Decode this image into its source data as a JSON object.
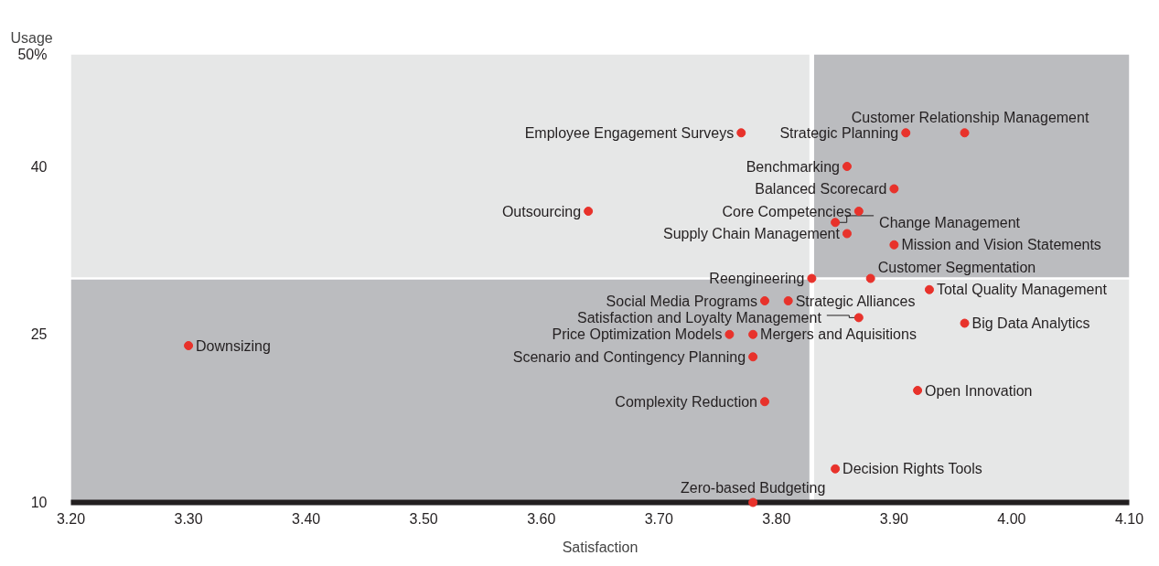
{
  "chart_data": {
    "type": "scatter",
    "xlabel": "Satisfaction",
    "ylabel": "Usage",
    "x": [
      3.77,
      3.91,
      3.96,
      3.86,
      3.9,
      3.64,
      3.87,
      3.85,
      3.86,
      3.9,
      3.83,
      3.88,
      3.93,
      3.79,
      3.81,
      3.87,
      3.96,
      3.76,
      3.78,
      3.3,
      3.78,
      3.92,
      3.79,
      3.85,
      3.78
    ],
    "values": [
      43,
      43,
      43,
      40,
      38,
      36,
      36,
      35,
      34,
      33,
      30,
      30,
      29,
      28,
      28,
      26.5,
      26,
      25,
      25,
      24,
      23,
      20,
      19,
      13,
      10
    ],
    "value_labels": [
      "Employee Engagement Surveys",
      "Strategic Planning",
      "Customer Relationship Management",
      "Benchmarking",
      "Balanced Scorecard",
      "Outsourcing",
      "Core Competencies",
      "Change Management",
      "Supply Chain Management",
      "Mission and Vision Statements",
      "Reengineering",
      "Customer Segmentation",
      "Total Quality Management",
      "Social Media Programs",
      "Strategic Alliances",
      "Satisfaction and Loyalty Management",
      "Big Data Analytics",
      "Price Optimization Models",
      "Mergers and Aquisitions",
      "Downsizing",
      "Scenario and Contingency Planning",
      "Open Innovation",
      "Complexity Reduction",
      "Decision Rights Tools",
      "Zero-based Budgeting"
    ],
    "color": "#e8322b",
    "marker": "circle",
    "grid": false,
    "xlim": [
      3.2,
      4.1
    ],
    "ylim": [
      10,
      50
    ],
    "xticks": [
      {
        "value": 3.2,
        "label": "3.20"
      },
      {
        "value": 3.3,
        "label": "3.30"
      },
      {
        "value": 3.4,
        "label": "3.40"
      },
      {
        "value": 3.5,
        "label": "3.50"
      },
      {
        "value": 3.6,
        "label": "3.60"
      },
      {
        "value": 3.7,
        "label": "3.70"
      },
      {
        "value": 3.8,
        "label": "3.80"
      },
      {
        "value": 3.9,
        "label": "3.90"
      },
      {
        "value": 4.0,
        "label": "4.00"
      },
      {
        "value": 4.1,
        "label": "4.10"
      }
    ],
    "yticks": [
      10,
      25,
      40,
      {
        "value": 50,
        "label": "50%"
      }
    ],
    "bands": [
      {
        "axis": "y",
        "from": 30,
        "to": 50,
        "color": "#e6e7e7"
      },
      {
        "axis": "y",
        "from": 10,
        "to": 30,
        "color": "#bbbcbf"
      },
      {
        "axis": "x",
        "from": 3.83,
        "to": 4.1
      }
    ]
  }
}
